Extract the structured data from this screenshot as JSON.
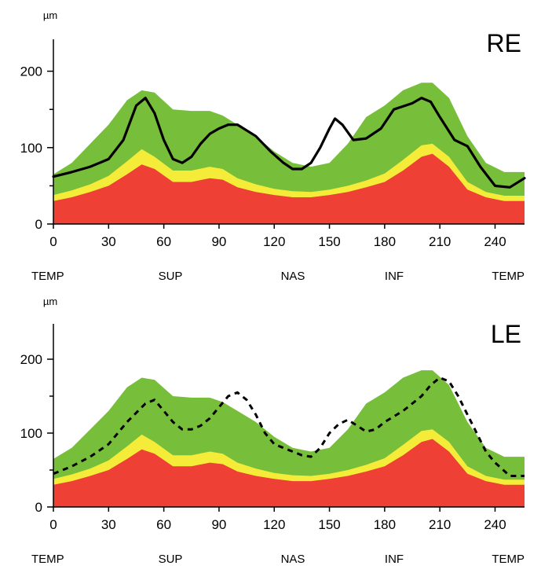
{
  "colors": {
    "red": "#EE4035",
    "yellow": "#F5EC3A",
    "green": "#77BE3A",
    "line": "#000000"
  },
  "chart_data": [
    {
      "type": "area",
      "title": "RE",
      "ylabel": "µm",
      "xlim": [
        0,
        256
      ],
      "ylim": [
        0,
        250
      ],
      "x_ticks": [
        0,
        30,
        60,
        90,
        120,
        150,
        180,
        210,
        240
      ],
      "x_tick_labels": [
        "0",
        "30",
        "60",
        "90",
        "120",
        "150",
        "180",
        "210",
        "240"
      ],
      "y_ticks": [
        0,
        100,
        200
      ],
      "y_tick_labels": [
        "0",
        "100",
        "200"
      ],
      "region_labels": [
        "TEMP",
        "SUP",
        "NAS",
        "INF",
        "TEMP"
      ],
      "bands": {
        "x": [
          0,
          10,
          20,
          30,
          40,
          48,
          55,
          65,
          75,
          85,
          92,
          100,
          110,
          120,
          130,
          140,
          150,
          160,
          170,
          180,
          190,
          200,
          206,
          215,
          225,
          235,
          245,
          256
        ],
        "red": [
          30,
          35,
          42,
          50,
          65,
          78,
          72,
          55,
          55,
          60,
          58,
          48,
          42,
          38,
          35,
          35,
          38,
          42,
          48,
          55,
          70,
          88,
          92,
          75,
          45,
          35,
          30,
          30
        ],
        "yellow": [
          38,
          44,
          52,
          63,
          82,
          98,
          88,
          70,
          70,
          75,
          72,
          60,
          52,
          46,
          43,
          42,
          45,
          50,
          57,
          66,
          84,
          103,
          105,
          88,
          55,
          42,
          37,
          37
        ],
        "green": [
          65,
          80,
          105,
          130,
          162,
          175,
          172,
          150,
          148,
          148,
          142,
          130,
          115,
          95,
          80,
          75,
          80,
          105,
          140,
          155,
          175,
          185,
          185,
          165,
          115,
          80,
          68,
          68
        ]
      },
      "measured_line": {
        "style": "solid",
        "x": [
          0,
          10,
          20,
          30,
          38,
          45,
          50,
          55,
          60,
          65,
          70,
          75,
          80,
          85,
          90,
          95,
          100,
          110,
          118,
          125,
          130,
          135,
          140,
          145,
          150,
          153,
          157,
          163,
          170,
          178,
          185,
          195,
          200,
          205,
          210,
          218,
          225,
          232,
          240,
          248,
          256
        ],
        "y": [
          62,
          68,
          75,
          85,
          110,
          155,
          165,
          145,
          110,
          85,
          80,
          88,
          105,
          118,
          125,
          130,
          130,
          115,
          95,
          80,
          72,
          72,
          80,
          100,
          125,
          138,
          130,
          110,
          112,
          125,
          150,
          158,
          165,
          160,
          140,
          110,
          102,
          75,
          50,
          48,
          60
        ]
      }
    },
    {
      "type": "area",
      "title": "LE",
      "ylabel": "µm",
      "xlim": [
        0,
        256
      ],
      "ylim": [
        0,
        250
      ],
      "x_ticks": [
        0,
        30,
        60,
        90,
        120,
        150,
        180,
        210,
        240
      ],
      "x_tick_labels": [
        "0",
        "30",
        "60",
        "90",
        "120",
        "150",
        "180",
        "210",
        "240"
      ],
      "y_ticks": [
        0,
        100,
        200
      ],
      "y_tick_labels": [
        "0",
        "100",
        "200"
      ],
      "region_labels": [
        "TEMP",
        "SUP",
        "NAS",
        "INF",
        "TEMP"
      ],
      "bands": {
        "x": [
          0,
          10,
          20,
          30,
          40,
          48,
          55,
          65,
          75,
          85,
          92,
          100,
          110,
          120,
          130,
          140,
          150,
          160,
          170,
          180,
          190,
          200,
          206,
          215,
          225,
          235,
          245,
          256
        ],
        "red": [
          30,
          35,
          42,
          50,
          65,
          78,
          72,
          55,
          55,
          60,
          58,
          48,
          42,
          38,
          35,
          35,
          38,
          42,
          48,
          55,
          70,
          88,
          92,
          75,
          45,
          35,
          30,
          30
        ],
        "yellow": [
          38,
          44,
          52,
          63,
          82,
          98,
          88,
          70,
          70,
          75,
          72,
          60,
          52,
          46,
          43,
          42,
          45,
          50,
          57,
          66,
          84,
          103,
          105,
          88,
          55,
          42,
          37,
          37
        ],
        "green": [
          65,
          80,
          105,
          130,
          162,
          175,
          172,
          150,
          148,
          148,
          142,
          130,
          115,
          95,
          80,
          75,
          80,
          105,
          140,
          155,
          175,
          185,
          185,
          165,
          115,
          80,
          68,
          68
        ]
      },
      "measured_line": {
        "style": "dashed",
        "x": [
          0,
          10,
          20,
          30,
          40,
          50,
          55,
          60,
          65,
          70,
          75,
          80,
          85,
          90,
          95,
          100,
          105,
          110,
          115,
          120,
          125,
          130,
          135,
          140,
          145,
          150,
          155,
          160,
          165,
          170,
          175,
          180,
          190,
          200,
          205,
          210,
          215,
          220,
          225,
          230,
          235,
          240,
          248,
          256
        ],
        "y": [
          45,
          55,
          68,
          85,
          115,
          140,
          145,
          130,
          115,
          105,
          105,
          110,
          120,
          135,
          150,
          155,
          145,
          125,
          100,
          85,
          80,
          75,
          70,
          68,
          80,
          100,
          112,
          118,
          110,
          102,
          105,
          115,
          130,
          150,
          165,
          175,
          170,
          150,
          125,
          100,
          75,
          60,
          42,
          42
        ]
      }
    }
  ]
}
